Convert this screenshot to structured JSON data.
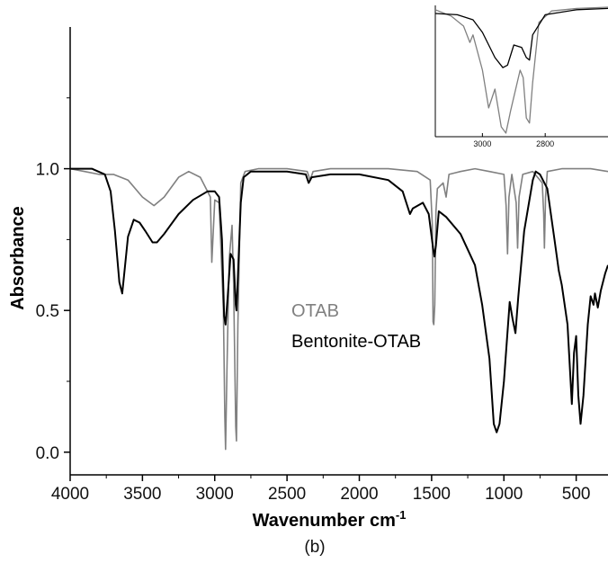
{
  "chart_data": [
    {
      "type": "line",
      "panel": "main",
      "xlabel": "Wavenumber cm",
      "xlabel_superscript": "-1",
      "ylabel": "Absorbance",
      "caption": "(b)",
      "xlim": [
        4000,
        280
      ],
      "ylim": [
        -0.08,
        1.5
      ],
      "x_ticks": [
        4000,
        3500,
        3000,
        2500,
        2000,
        1500,
        1000,
        500
      ],
      "y_ticks": [
        0.0,
        0.5,
        1.0
      ],
      "y_tick_labels": [
        "0.0",
        "0.5",
        "1.0"
      ],
      "grid": false,
      "legend_placement": "center",
      "series": [
        {
          "name": "OTAB",
          "color": "#808080",
          "points": [
            [
              4000,
              1.0
            ],
            [
              3900,
              0.99
            ],
            [
              3800,
              0.98
            ],
            [
              3700,
              0.98
            ],
            [
              3600,
              0.96
            ],
            [
              3500,
              0.9
            ],
            [
              3420,
              0.87
            ],
            [
              3350,
              0.9
            ],
            [
              3250,
              0.97
            ],
            [
              3180,
              0.99
            ],
            [
              3100,
              0.97
            ],
            [
              3050,
              0.92
            ],
            [
              3030,
              0.9
            ],
            [
              3020,
              0.67
            ],
            [
              3000,
              0.89
            ],
            [
              2970,
              0.88
            ],
            [
              2940,
              0.5
            ],
            [
              2930,
              0.12
            ],
            [
              2925,
              0.01
            ],
            [
              2915,
              0.3
            ],
            [
              2900,
              0.68
            ],
            [
              2880,
              0.8
            ],
            [
              2870,
              0.6
            ],
            [
              2855,
              0.09
            ],
            [
              2850,
              0.04
            ],
            [
              2840,
              0.45
            ],
            [
              2820,
              0.95
            ],
            [
              2790,
              0.99
            ],
            [
              2700,
              1.0
            ],
            [
              2500,
              1.0
            ],
            [
              2360,
              0.99
            ],
            [
              2340,
              0.96
            ],
            [
              2320,
              0.99
            ],
            [
              2200,
              1.0
            ],
            [
              1800,
              1.0
            ],
            [
              1600,
              0.99
            ],
            [
              1510,
              0.96
            ],
            [
              1495,
              0.8
            ],
            [
              1490,
              0.46
            ],
            [
              1485,
              0.45
            ],
            [
              1478,
              0.52
            ],
            [
              1470,
              0.85
            ],
            [
              1460,
              0.93
            ],
            [
              1420,
              0.95
            ],
            [
              1400,
              0.9
            ],
            [
              1380,
              0.98
            ],
            [
              1300,
              0.99
            ],
            [
              1200,
              1.0
            ],
            [
              1100,
              0.99
            ],
            [
              1000,
              0.98
            ],
            [
              985,
              0.87
            ],
            [
              975,
              0.7
            ],
            [
              965,
              0.9
            ],
            [
              945,
              0.98
            ],
            [
              915,
              0.88
            ],
            [
              905,
              0.72
            ],
            [
              895,
              0.9
            ],
            [
              870,
              0.98
            ],
            [
              800,
              0.99
            ],
            [
              735,
              0.95
            ],
            [
              725,
              0.84
            ],
            [
              720,
              0.72
            ],
            [
              712,
              0.9
            ],
            [
              700,
              0.99
            ],
            [
              600,
              1.0
            ],
            [
              500,
              1.0
            ],
            [
              400,
              1.0
            ],
            [
              280,
              0.99
            ]
          ]
        },
        {
          "name": "Bentonite-OTAB",
          "color": "#000000",
          "points": [
            [
              4000,
              1.0
            ],
            [
              3850,
              1.0
            ],
            [
              3760,
              0.98
            ],
            [
              3720,
              0.92
            ],
            [
              3690,
              0.78
            ],
            [
              3660,
              0.6
            ],
            [
              3640,
              0.56
            ],
            [
              3620,
              0.66
            ],
            [
              3600,
              0.76
            ],
            [
              3560,
              0.82
            ],
            [
              3520,
              0.81
            ],
            [
              3480,
              0.78
            ],
            [
              3430,
              0.74
            ],
            [
              3400,
              0.74
            ],
            [
              3350,
              0.77
            ],
            [
              3250,
              0.84
            ],
            [
              3150,
              0.89
            ],
            [
              3050,
              0.92
            ],
            [
              3000,
              0.92
            ],
            [
              2970,
              0.9
            ],
            [
              2950,
              0.75
            ],
            [
              2935,
              0.48
            ],
            [
              2925,
              0.45
            ],
            [
              2910,
              0.55
            ],
            [
              2890,
              0.7
            ],
            [
              2870,
              0.68
            ],
            [
              2855,
              0.52
            ],
            [
              2850,
              0.5
            ],
            [
              2840,
              0.62
            ],
            [
              2820,
              0.88
            ],
            [
              2800,
              0.97
            ],
            [
              2750,
              0.99
            ],
            [
              2500,
              0.99
            ],
            [
              2370,
              0.98
            ],
            [
              2350,
              0.95
            ],
            [
              2330,
              0.97
            ],
            [
              2200,
              0.98
            ],
            [
              2000,
              0.98
            ],
            [
              1800,
              0.96
            ],
            [
              1700,
              0.92
            ],
            [
              1650,
              0.84
            ],
            [
              1630,
              0.86
            ],
            [
              1560,
              0.88
            ],
            [
              1520,
              0.84
            ],
            [
              1490,
              0.72
            ],
            [
              1480,
              0.69
            ],
            [
              1470,
              0.73
            ],
            [
              1450,
              0.85
            ],
            [
              1400,
              0.83
            ],
            [
              1300,
              0.77
            ],
            [
              1200,
              0.66
            ],
            [
              1150,
              0.52
            ],
            [
              1100,
              0.33
            ],
            [
              1070,
              0.1
            ],
            [
              1050,
              0.07
            ],
            [
              1030,
              0.1
            ],
            [
              1000,
              0.25
            ],
            [
              960,
              0.53
            ],
            [
              940,
              0.47
            ],
            [
              920,
              0.42
            ],
            [
              900,
              0.55
            ],
            [
              860,
              0.78
            ],
            [
              800,
              0.96
            ],
            [
              780,
              0.99
            ],
            [
              750,
              0.98
            ],
            [
              700,
              0.93
            ],
            [
              650,
              0.75
            ],
            [
              620,
              0.64
            ],
            [
              600,
              0.59
            ],
            [
              560,
              0.45
            ],
            [
              530,
              0.17
            ],
            [
              515,
              0.35
            ],
            [
              500,
              0.41
            ],
            [
              485,
              0.2
            ],
            [
              470,
              0.1
            ],
            [
              450,
              0.2
            ],
            [
              420,
              0.45
            ],
            [
              400,
              0.55
            ],
            [
              380,
              0.52
            ],
            [
              370,
              0.56
            ],
            [
              350,
              0.51
            ],
            [
              330,
              0.57
            ],
            [
              300,
              0.63
            ],
            [
              280,
              0.66
            ]
          ]
        }
      ]
    },
    {
      "type": "line",
      "panel": "inset",
      "xlim": [
        3150,
        2600
      ],
      "ylim": [
        0,
        1.0
      ],
      "x_ticks": [
        3000,
        2800
      ],
      "x_tick_labels": [
        "3000",
        "2800"
      ],
      "grid": false,
      "series": [
        {
          "name": "OTAB",
          "color": "#808080",
          "points": [
            [
              3150,
              0.98
            ],
            [
              3100,
              0.93
            ],
            [
              3060,
              0.85
            ],
            [
              3040,
              0.72
            ],
            [
              3030,
              0.78
            ],
            [
              3000,
              0.5
            ],
            [
              2980,
              0.2
            ],
            [
              2960,
              0.35
            ],
            [
              2940,
              0.05
            ],
            [
              2925,
              0.0
            ],
            [
              2910,
              0.18
            ],
            [
              2880,
              0.5
            ],
            [
              2870,
              0.44
            ],
            [
              2860,
              0.12
            ],
            [
              2850,
              0.08
            ],
            [
              2840,
              0.4
            ],
            [
              2820,
              0.88
            ],
            [
              2780,
              0.97
            ],
            [
              2700,
              0.99
            ],
            [
              2600,
              1.0
            ]
          ]
        },
        {
          "name": "Bentonite-OTAB",
          "color": "#000000",
          "points": [
            [
              3150,
              0.95
            ],
            [
              3080,
              0.94
            ],
            [
              3030,
              0.9
            ],
            [
              3000,
              0.8
            ],
            [
              2960,
              0.6
            ],
            [
              2935,
              0.52
            ],
            [
              2920,
              0.54
            ],
            [
              2900,
              0.7
            ],
            [
              2875,
              0.68
            ],
            [
              2860,
              0.6
            ],
            [
              2850,
              0.58
            ],
            [
              2840,
              0.78
            ],
            [
              2800,
              0.94
            ],
            [
              2700,
              0.98
            ],
            [
              2600,
              0.99
            ]
          ]
        }
      ]
    }
  ]
}
